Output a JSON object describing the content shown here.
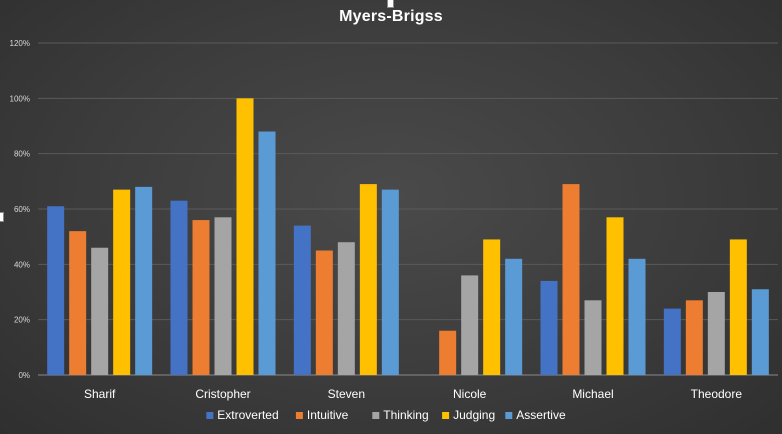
{
  "chart_data": {
    "type": "bar",
    "title": "Myers-Brigss",
    "categories": [
      "Sharif",
      "Cristopher",
      "Steven",
      "Nicole",
      "Michael",
      "Theodore"
    ],
    "series": [
      {
        "name": "Extroverted",
        "color": "#4472c4",
        "values": [
          61,
          63,
          54,
          0,
          34,
          24
        ]
      },
      {
        "name": "Intuitive",
        "color": "#ed7d31",
        "values": [
          52,
          56,
          45,
          16,
          69,
          27
        ]
      },
      {
        "name": "Thinking",
        "color": "#a5a5a5",
        "values": [
          46,
          57,
          48,
          36,
          27,
          30
        ]
      },
      {
        "name": "Judging",
        "color": "#ffc000",
        "values": [
          67,
          100,
          69,
          49,
          57,
          49
        ]
      },
      {
        "name": "Assertive",
        "color": "#5b9bd5",
        "values": [
          68,
          88,
          67,
          42,
          42,
          31
        ]
      }
    ],
    "ylim": [
      0,
      120
    ],
    "yticks": [
      0,
      20,
      40,
      60,
      80,
      100,
      120
    ],
    "ytick_labels": [
      "0%",
      "20%",
      "40%",
      "60%",
      "80%",
      "100%",
      "120%"
    ],
    "grid": true,
    "legend_position": "bottom"
  }
}
